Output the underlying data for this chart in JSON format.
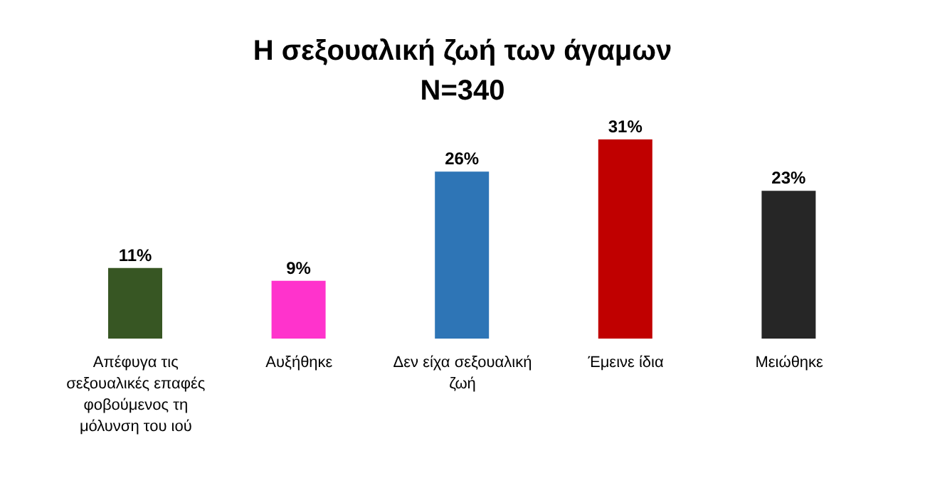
{
  "chart_data": {
    "type": "bar",
    "title": "Η σεξουαλική ζωή των άγαμων",
    "subtitle": "N=340",
    "categories": [
      "Απέφυγα τις σεξουαλικές επαφές φοβούμενος τη μόλυνση του ιού",
      "Αυξήθηκε",
      "Δεν είχα σεξουαλική ζωή",
      "Έμεινε ίδια",
      "Μειώθηκε"
    ],
    "values": [
      11,
      9,
      26,
      31,
      23
    ],
    "colors": [
      "#375623",
      "#ff33cc",
      "#2e75b6",
      "#c00000",
      "#262626"
    ],
    "value_labels": [
      "11%",
      "9%",
      "26%",
      "31%",
      "23%"
    ],
    "legend": false,
    "grid": false
  }
}
